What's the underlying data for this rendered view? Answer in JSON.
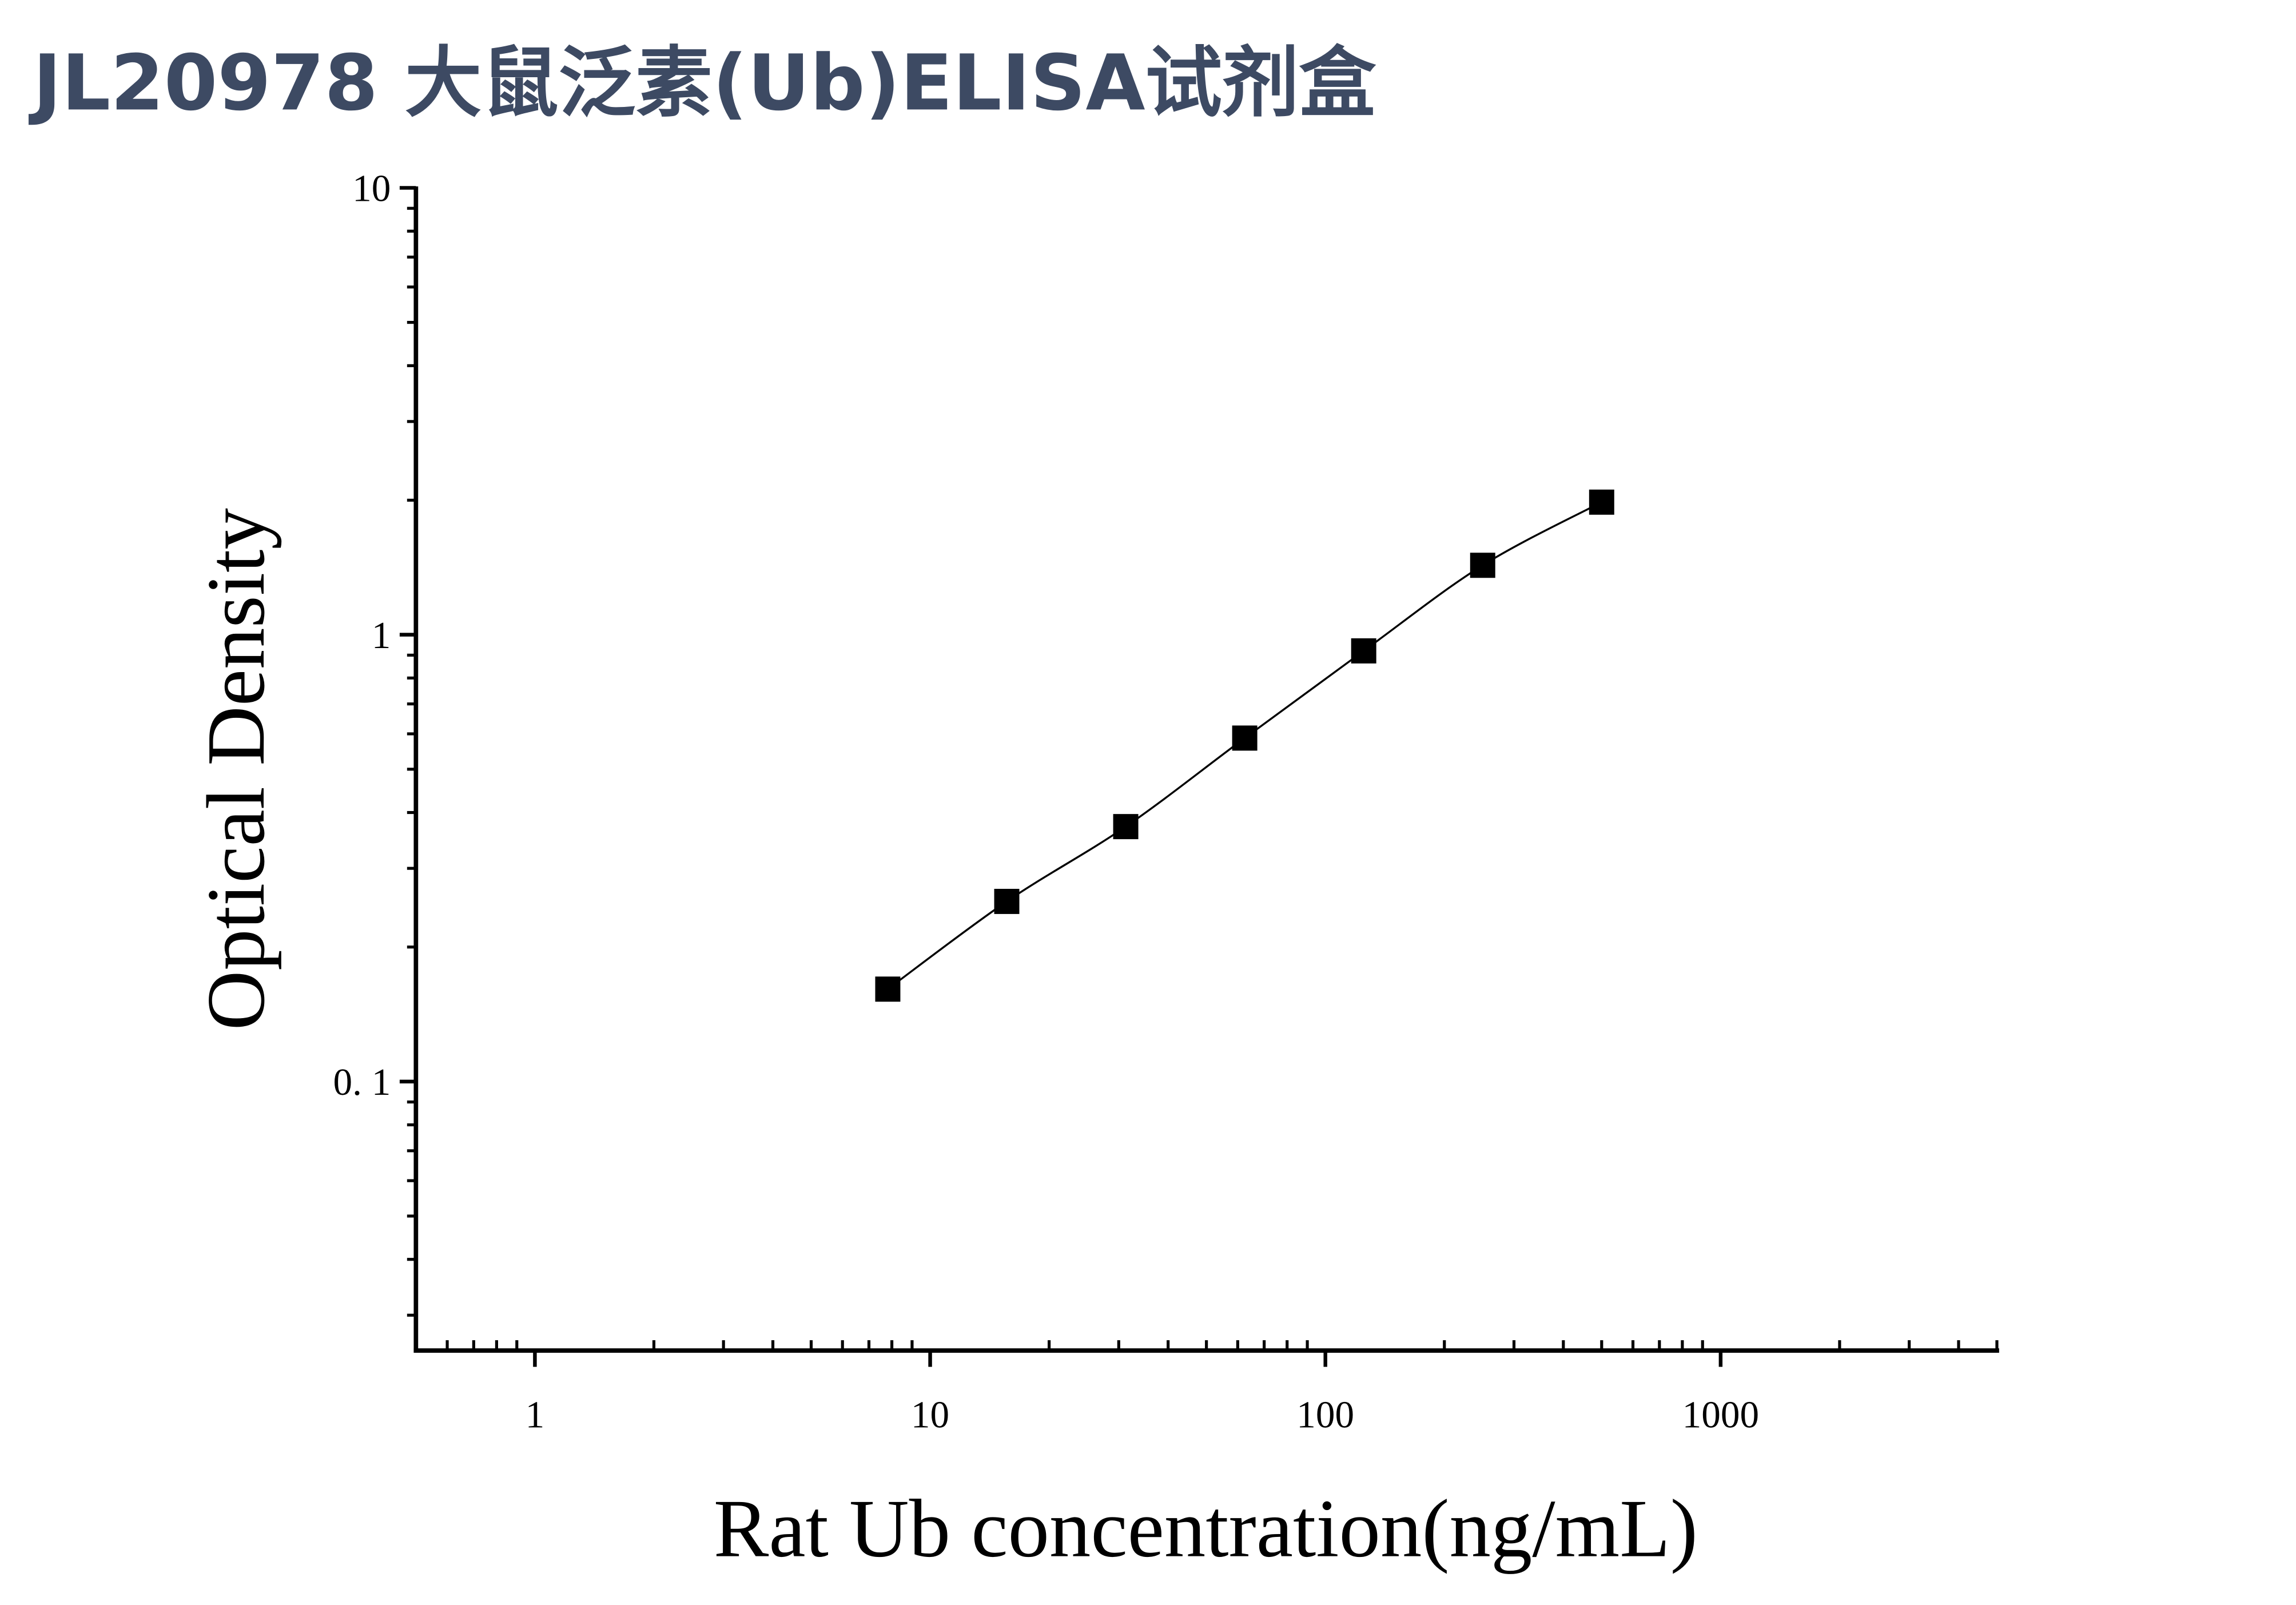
{
  "chart_data": {
    "type": "scatter",
    "title": "JL20978 大鼠泛素(Ub)ELISA试剂盒",
    "x_label": "Rat Ub concentration(ng/mL)",
    "y_label": "Optical Density",
    "x": [
      7.8125,
      15.625,
      31.25,
      62.5,
      125,
      250,
      500
    ],
    "series": [
      {
        "color": "#000000",
        "values": [
          0.161,
          0.253,
          0.372,
          0.587,
          0.92,
          1.43,
          1.98
        ]
      }
    ],
    "xscale": "log",
    "yscale": "log",
    "xlim": [
      0.5,
      5000
    ],
    "ylim": [
      0.025,
      10
    ],
    "xticks": [
      1,
      10,
      100,
      1000
    ],
    "yticks": [
      {
        "value": 0.1,
        "label": "0. 1"
      },
      1,
      10
    ],
    "grid": false
  }
}
